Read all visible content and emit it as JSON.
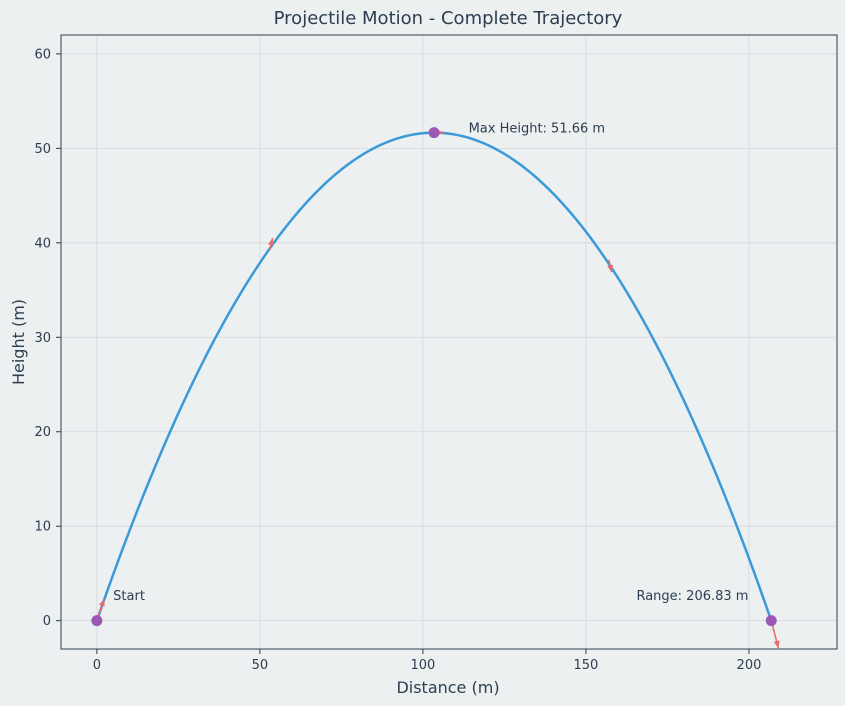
{
  "chart_data": {
    "type": "line",
    "title": "Projectile Motion - Complete Trajectory",
    "xlabel": "Distance (m)",
    "ylabel": "Height (m)",
    "xlim": [
      -11,
      227
    ],
    "ylim": [
      -3,
      62
    ],
    "xticks": [
      0,
      50,
      100,
      150,
      200
    ],
    "yticks": [
      0,
      10,
      20,
      30,
      40,
      50,
      60
    ],
    "grid": true,
    "series": [
      {
        "peak_x": 103.415,
        "peak_y": 51.66,
        "range_x": 206.83,
        "x": [
          0,
          10.34,
          20.68,
          31.02,
          41.37,
          51.71,
          62.05,
          72.39,
          82.73,
          93.07,
          103.42,
          113.76,
          124.1,
          134.44,
          144.78,
          155.12,
          165.46,
          175.81,
          186.15,
          196.49,
          206.83
        ],
        "y": [
          0,
          9.82,
          18.6,
          26.35,
          33.06,
          38.75,
          43.4,
          47.01,
          49.59,
          51.14,
          51.66,
          51.14,
          49.59,
          47.01,
          43.4,
          38.75,
          33.06,
          26.35,
          18.6,
          9.82,
          0
        ]
      }
    ],
    "markers": [
      {
        "x": 0,
        "y": 0
      },
      {
        "x": 103.42,
        "y": 51.66
      },
      {
        "x": 206.83,
        "y": 0
      }
    ],
    "velocity_arrows": [
      {
        "x": 0,
        "y": 0,
        "dx": 2.2,
        "dy": 2.3
      },
      {
        "x": 53,
        "y": 39.2,
        "dx": 0.9,
        "dy": 1.3
      },
      {
        "x": 103.42,
        "y": 51.66,
        "dx": 3.0,
        "dy": 0
      },
      {
        "x": 157,
        "y": 38.2,
        "dx": 0.9,
        "dy": -1.3
      },
      {
        "x": 206.83,
        "y": 0,
        "dx": 2.2,
        "dy": -2.9
      }
    ],
    "annotations": [
      {
        "text": "Start",
        "x": 5,
        "y": 2.2
      },
      {
        "text": "Max Height: 51.66 m",
        "x": 114,
        "y": 51.7
      },
      {
        "text": "Range: 206.83 m",
        "x": 165.5,
        "y": 2.2
      }
    ],
    "colors": {
      "background": "#ecf0f1",
      "line": "#3a9ad9",
      "marker": "#9b59b6",
      "arrow": "#e26d6d",
      "text": "#2c3e50",
      "grid": "#d5d8dc",
      "axis": "#2c3e50"
    }
  }
}
